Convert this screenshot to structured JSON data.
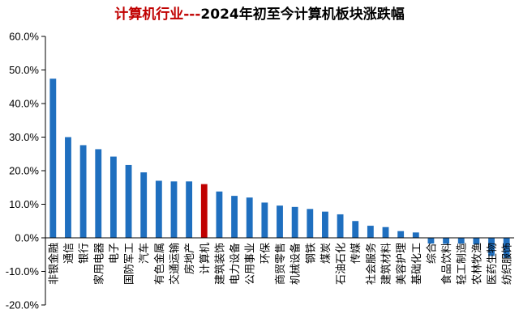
{
  "title": {
    "part1": "计算机行业---",
    "part2": "2024年初至今计算机板块涨跌幅"
  },
  "colors": {
    "default_bar": "#1f6fbf",
    "highlight_bar": "#c00000",
    "title_highlight": "#c00000",
    "axis": "#000000"
  },
  "chart_data": {
    "type": "bar",
    "title": "计算机行业---2024年初至今计算机板块涨跌幅",
    "xlabel": "",
    "ylabel": "",
    "ylim": [
      -0.2,
      0.6
    ],
    "yticks": [
      0.6,
      0.5,
      0.4,
      0.3,
      0.2,
      0.1,
      0.0,
      -0.1,
      -0.2
    ],
    "ytick_labels": [
      "60.0%",
      "50.0%",
      "40.0%",
      "30.0%",
      "20.0%",
      "10.0%",
      "0.0%",
      "-10.0%",
      "-20.0%"
    ],
    "grid": false,
    "legend": "none",
    "highlight_category": "计算机",
    "categories": [
      "非银金融",
      "通信",
      "银行",
      "家用电器",
      "电子",
      "国防军工",
      "汽车",
      "有色金属",
      "交通运输",
      "房地产",
      "计算机",
      "建筑装饰",
      "电力设备",
      "公用事业",
      "环保",
      "商贸零售",
      "机械设备",
      "钢铁",
      "煤炭",
      "石油石化",
      "传媒",
      "社会服务",
      "建筑材料",
      "美容护理",
      "基础化工",
      "综合",
      "食品饮料",
      "轻工制造",
      "农林牧渔",
      "医药生物",
      "纺织服饰"
    ],
    "values": [
      0.474,
      0.3,
      0.276,
      0.264,
      0.242,
      0.217,
      0.195,
      0.17,
      0.168,
      0.168,
      0.16,
      0.138,
      0.125,
      0.12,
      0.105,
      0.096,
      0.092,
      0.086,
      0.078,
      0.07,
      0.05,
      0.036,
      0.032,
      0.02,
      0.016,
      -0.017,
      -0.018,
      -0.017,
      -0.02,
      -0.054,
      -0.06
    ]
  }
}
